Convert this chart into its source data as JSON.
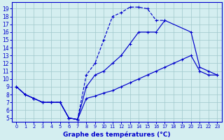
{
  "title": "Graphe des températures (°C)",
  "x_labels": [
    "0",
    "1",
    "2",
    "3",
    "4",
    "5",
    "6",
    "7",
    "8",
    "9",
    "10",
    "11",
    "12",
    "13",
    "14",
    "15",
    "16",
    "17",
    "18",
    "19",
    "20",
    "21",
    "22",
    "23"
  ],
  "line_color": "#0000cc",
  "bg_color": "#d4eef0",
  "grid_color": "#a0c8cc",
  "yticks": [
    5,
    6,
    7,
    8,
    9,
    10,
    11,
    12,
    13,
    14,
    15,
    16,
    17,
    18,
    19
  ],
  "curve_top_x": [
    0,
    1,
    2,
    3,
    4,
    5,
    6,
    7,
    8,
    9,
    10,
    11,
    12,
    13,
    14,
    15,
    16,
    17
  ],
  "curve_top_y": [
    9,
    8,
    7.5,
    7,
    7,
    7,
    5,
    4.8,
    10.5,
    12,
    15,
    18,
    18.5,
    19.2,
    19.2,
    19.0,
    17.5,
    17.5
  ],
  "curve_bot_x": [
    0,
    1,
    2,
    3,
    4,
    5,
    6,
    7,
    8,
    9,
    10,
    11,
    12,
    13,
    14,
    15,
    16,
    17,
    18,
    19,
    20,
    21,
    22,
    23
  ],
  "curve_bot_y": [
    9,
    8,
    7.5,
    7,
    7,
    7,
    5,
    4.8,
    7.5,
    7.8,
    8.2,
    8.5,
    9.0,
    9.5,
    10.0,
    10.5,
    11.0,
    11.5,
    12.0,
    12.5,
    13.0,
    11.0,
    10.5,
    10.5
  ],
  "curve_mid_x": [
    0,
    1,
    2,
    3,
    4,
    5,
    6,
    7,
    8,
    9,
    10,
    11,
    12,
    13,
    14,
    15,
    16,
    17,
    20,
    21,
    22,
    23
  ],
  "curve_mid_y": [
    9,
    8,
    7.5,
    7,
    7,
    7,
    5,
    4.8,
    9.0,
    10.5,
    11.0,
    12.0,
    13.0,
    14.5,
    16.0,
    16.0,
    16.0,
    17.5,
    16.0,
    11.5,
    11.0,
    10.5
  ]
}
